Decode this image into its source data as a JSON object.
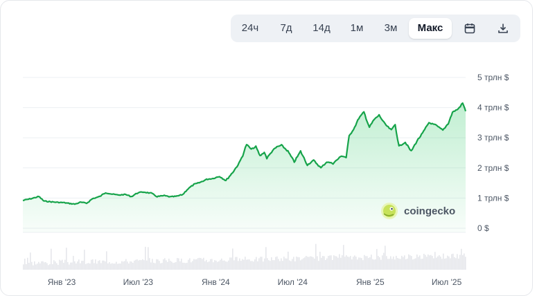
{
  "toolbar": {
    "ranges": [
      "24ч",
      "7д",
      "14д",
      "1м",
      "3м",
      "Макс"
    ],
    "active": "Макс",
    "calendar_icon": "calendar-icon",
    "download_icon": "download-icon"
  },
  "watermark": {
    "text": "coingecko",
    "icon": "coingecko-gecko-logo"
  },
  "colors": {
    "line": "#16a34a",
    "area": "#22c55e",
    "volume": "#e5e7eb",
    "accent": "#111827"
  },
  "chart_data": {
    "type": "area",
    "title": "",
    "xlabel": "",
    "ylabel": "",
    "y_unit": "трлн $",
    "ylim": [
      0,
      5
    ],
    "yticks": [
      {
        "value": 0,
        "label": "0 $"
      },
      {
        "value": 1,
        "label": "1 трлн $"
      },
      {
        "value": 2,
        "label": "2 трлн $"
      },
      {
        "value": 3,
        "label": "3 трлн $"
      },
      {
        "value": 4,
        "label": "4 трлн $"
      },
      {
        "value": 5,
        "label": "5 трлн $"
      }
    ],
    "xlim": [
      "2022-10-01",
      "2025-08-15"
    ],
    "xticks": [
      {
        "date": "2023-01-01",
        "label": "Янв '23"
      },
      {
        "date": "2023-07-01",
        "label": "Июл '23"
      },
      {
        "date": "2024-01-01",
        "label": "Янв '24"
      },
      {
        "date": "2024-07-01",
        "label": "Июл '24"
      },
      {
        "date": "2025-01-01",
        "label": "Янв '25"
      },
      {
        "date": "2025-07-01",
        "label": "Июл '25"
      }
    ],
    "grid": true,
    "legend": "none",
    "series": [
      {
        "points": [
          [
            "2022-10-01",
            0.92
          ],
          [
            "2022-10-20",
            0.98
          ],
          [
            "2022-11-08",
            1.05
          ],
          [
            "2022-11-20",
            0.9
          ],
          [
            "2022-12-05",
            0.88
          ],
          [
            "2022-12-20",
            0.86
          ],
          [
            "2023-01-05",
            0.85
          ],
          [
            "2023-01-20",
            0.82
          ],
          [
            "2023-02-01",
            0.8
          ],
          [
            "2023-02-15",
            0.86
          ],
          [
            "2023-03-01",
            0.83
          ],
          [
            "2023-03-15",
            0.98
          ],
          [
            "2023-04-01",
            1.05
          ],
          [
            "2023-04-15",
            1.18
          ],
          [
            "2023-05-01",
            1.13
          ],
          [
            "2023-05-15",
            1.1
          ],
          [
            "2023-06-01",
            1.12
          ],
          [
            "2023-06-15",
            1.05
          ],
          [
            "2023-07-01",
            1.18
          ],
          [
            "2023-07-15",
            1.2
          ],
          [
            "2023-08-01",
            1.16
          ],
          [
            "2023-08-15",
            1.05
          ],
          [
            "2023-09-01",
            1.08
          ],
          [
            "2023-09-15",
            1.04
          ],
          [
            "2023-10-01",
            1.06
          ],
          [
            "2023-10-15",
            1.12
          ],
          [
            "2023-10-25",
            1.28
          ],
          [
            "2023-11-10",
            1.45
          ],
          [
            "2023-11-25",
            1.52
          ],
          [
            "2023-12-10",
            1.62
          ],
          [
            "2023-12-25",
            1.65
          ],
          [
            "2024-01-10",
            1.72
          ],
          [
            "2024-01-25",
            1.58
          ],
          [
            "2024-02-10",
            1.85
          ],
          [
            "2024-02-25",
            2.15
          ],
          [
            "2024-03-05",
            2.42
          ],
          [
            "2024-03-14",
            2.78
          ],
          [
            "2024-03-25",
            2.62
          ],
          [
            "2024-04-05",
            2.7
          ],
          [
            "2024-04-15",
            2.4
          ],
          [
            "2024-04-25",
            2.52
          ],
          [
            "2024-05-01",
            2.32
          ],
          [
            "2024-05-15",
            2.58
          ],
          [
            "2024-05-25",
            2.7
          ],
          [
            "2024-06-05",
            2.75
          ],
          [
            "2024-06-20",
            2.55
          ],
          [
            "2024-07-05",
            2.2
          ],
          [
            "2024-07-20",
            2.55
          ],
          [
            "2024-08-05",
            2.1
          ],
          [
            "2024-08-20",
            2.25
          ],
          [
            "2024-09-06",
            2.0
          ],
          [
            "2024-09-20",
            2.2
          ],
          [
            "2024-10-05",
            2.15
          ],
          [
            "2024-10-25",
            2.4
          ],
          [
            "2024-11-05",
            2.35
          ],
          [
            "2024-11-12",
            3.05
          ],
          [
            "2024-11-25",
            3.35
          ],
          [
            "2024-12-05",
            3.65
          ],
          [
            "2024-12-17",
            3.85
          ],
          [
            "2024-12-30",
            3.35
          ],
          [
            "2025-01-10",
            3.6
          ],
          [
            "2025-01-22",
            3.75
          ],
          [
            "2025-02-05",
            3.45
          ],
          [
            "2025-02-20",
            3.25
          ],
          [
            "2025-03-01",
            3.45
          ],
          [
            "2025-03-10",
            2.72
          ],
          [
            "2025-03-25",
            2.85
          ],
          [
            "2025-04-08",
            2.55
          ],
          [
            "2025-04-22",
            2.9
          ],
          [
            "2025-05-05",
            3.15
          ],
          [
            "2025-05-20",
            3.5
          ],
          [
            "2025-06-05",
            3.42
          ],
          [
            "2025-06-22",
            3.25
          ],
          [
            "2025-07-05",
            3.48
          ],
          [
            "2025-07-15",
            3.85
          ],
          [
            "2025-07-28",
            3.95
          ],
          [
            "2025-08-08",
            4.15
          ],
          [
            "2025-08-15",
            3.88
          ]
        ]
      }
    ]
  }
}
